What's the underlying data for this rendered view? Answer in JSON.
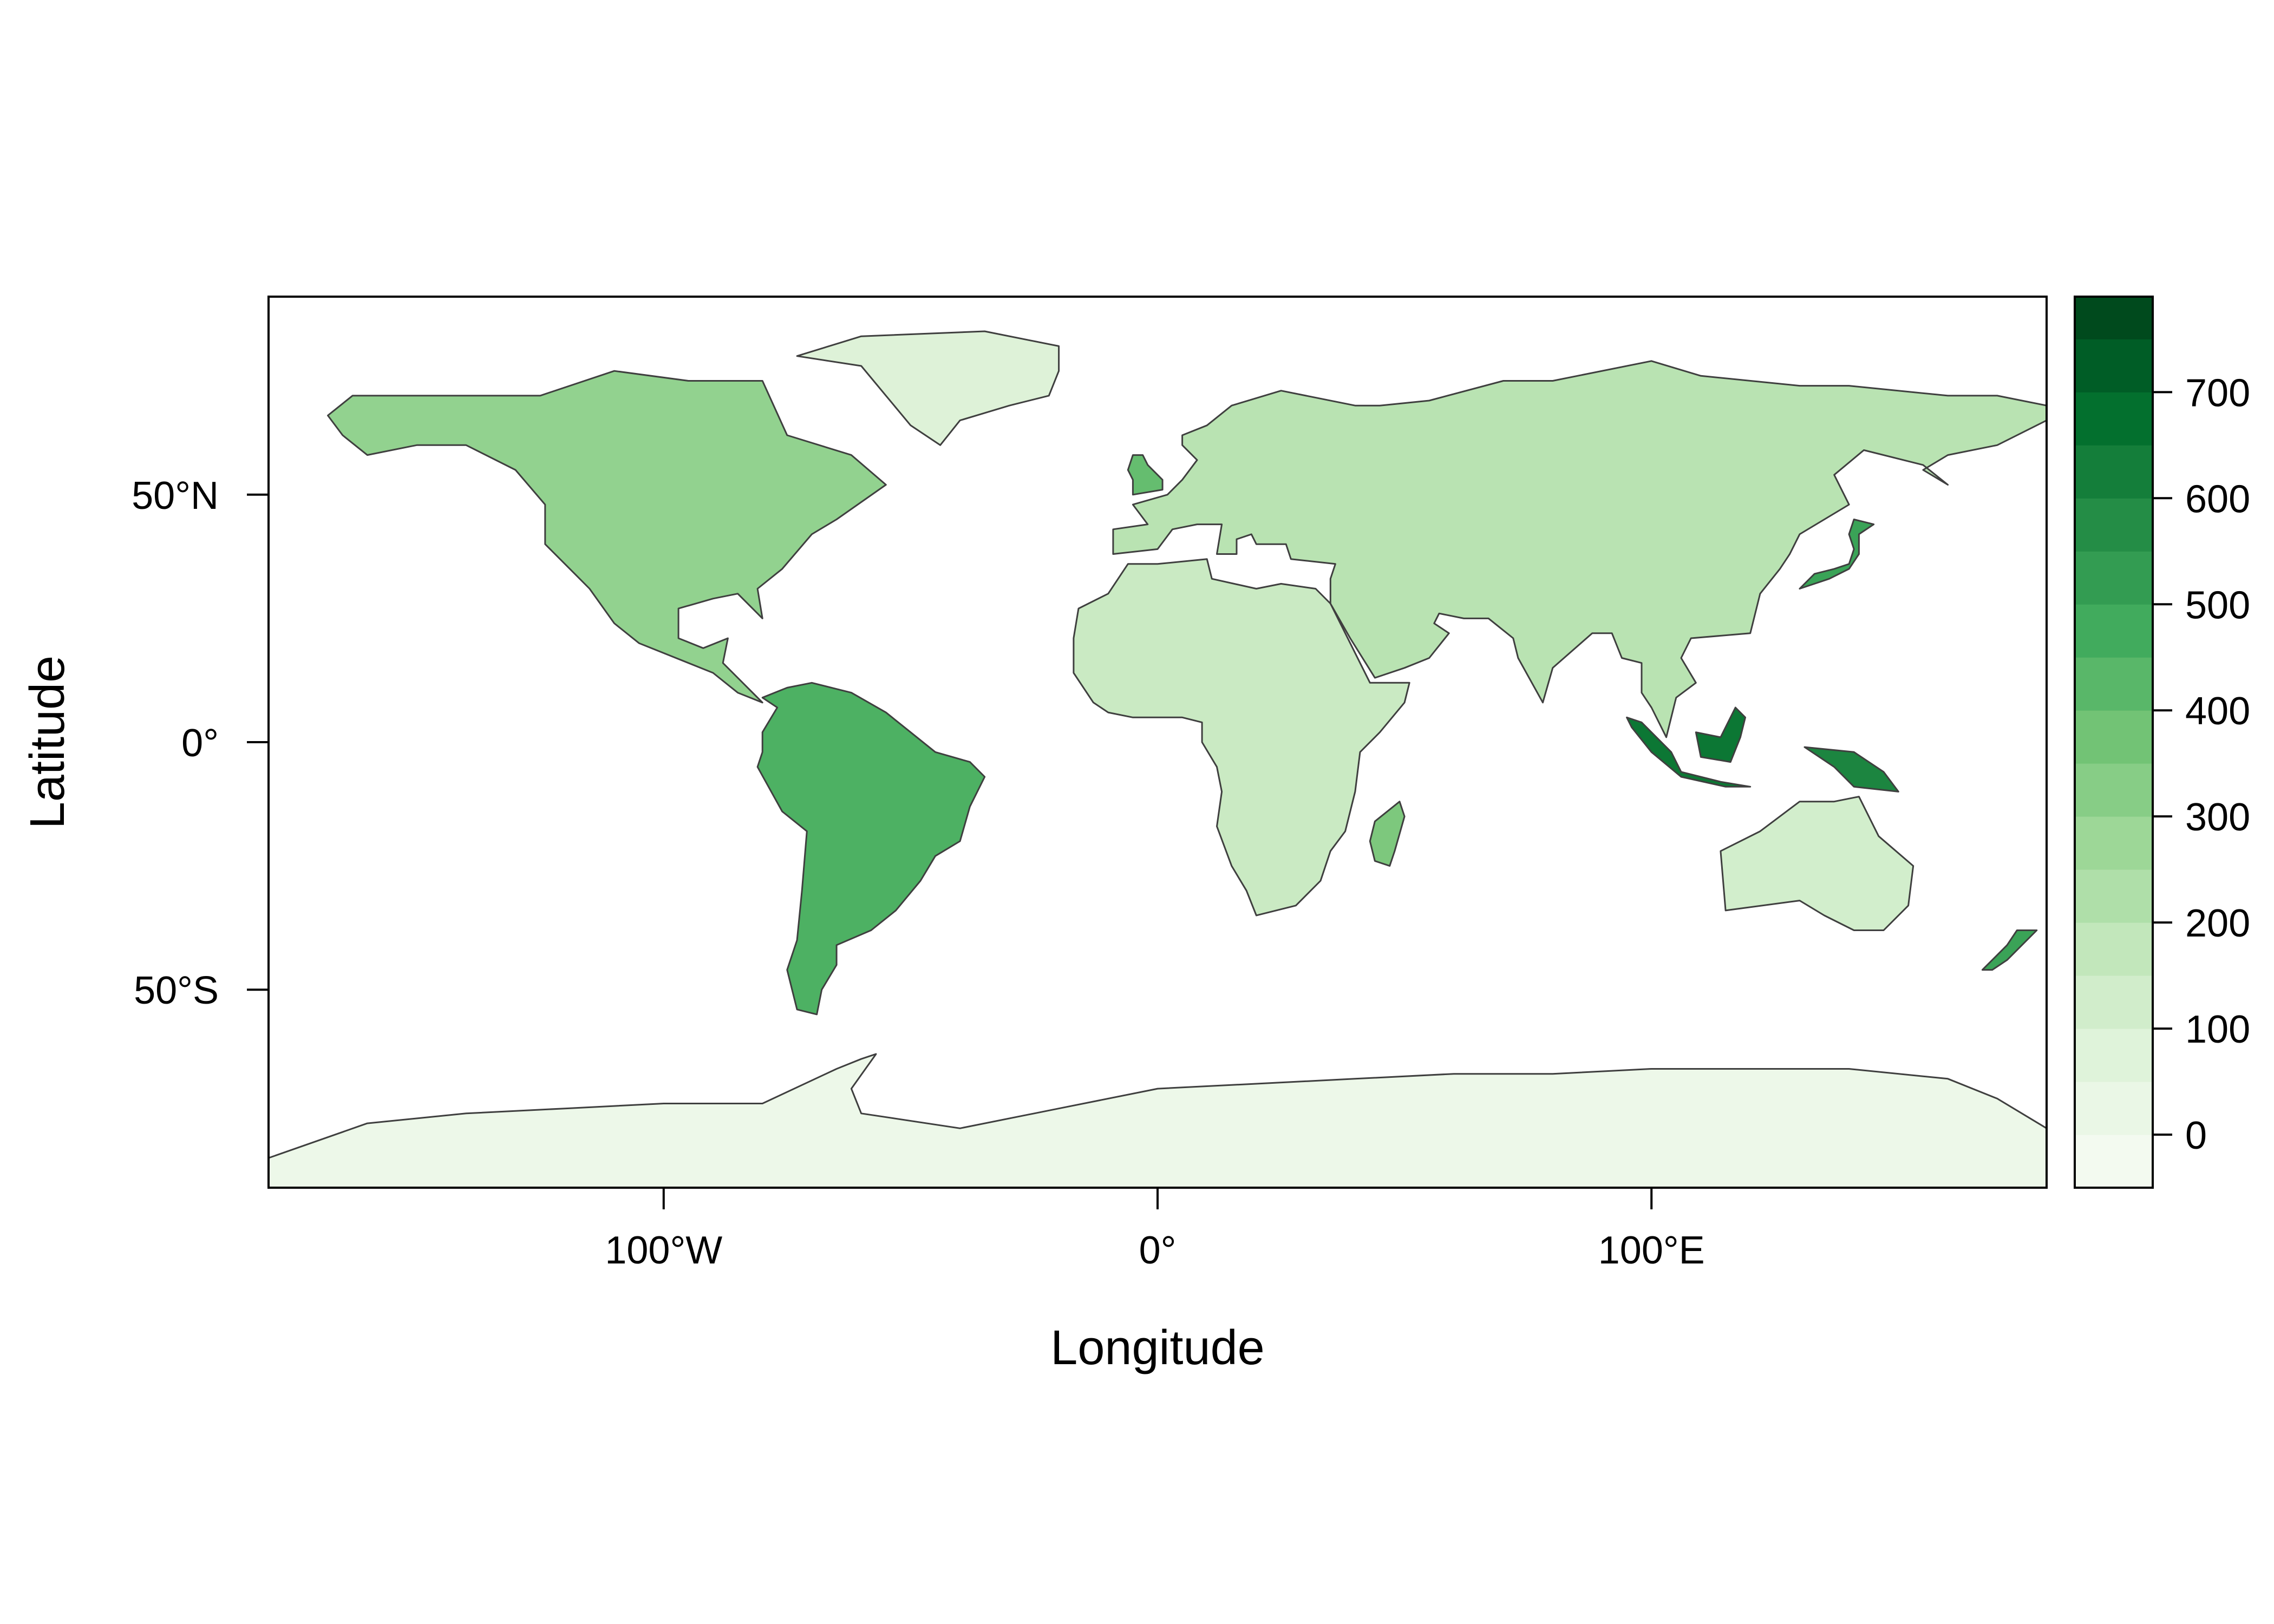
{
  "map": {
    "xlabel": "Longitude",
    "ylabel": "Latitude",
    "xlim": [
      -180,
      180
    ],
    "ylim": [
      -90,
      90
    ],
    "x_ticks": [
      {
        "value": -100,
        "label": "100°W"
      },
      {
        "value": 0,
        "label": "0°"
      },
      {
        "value": 100,
        "label": "100°E"
      }
    ],
    "y_ticks": [
      {
        "value": 50,
        "label": "50°N"
      },
      {
        "value": 0,
        "label": "0°"
      },
      {
        "value": -50,
        "label": "50°S"
      }
    ],
    "palette": [
      "#f7fcf5",
      "#e5f5e0",
      "#c7e9c0",
      "#a1d99b",
      "#74c476",
      "#41ab5d",
      "#238b45",
      "#006d2c",
      "#00441b"
    ],
    "border_color": "#3f3f3f"
  },
  "colorbar": {
    "min": -50,
    "max": 790,
    "step": 50,
    "ticks": [
      0,
      100,
      200,
      300,
      400,
      500,
      600,
      700
    ],
    "tick_labels": [
      "0",
      "100",
      "200",
      "300",
      "400",
      "500",
      "600",
      "700"
    ]
  },
  "chart_data": {
    "type": "heatmap",
    "title": "",
    "xlabel": "Longitude",
    "ylabel": "Latitude",
    "xlim": [
      -180,
      180
    ],
    "ylim": [
      -90,
      90
    ],
    "value_range": [
      -50,
      790
    ],
    "legend_position": "right",
    "grid": false,
    "regions": [
      {
        "name": "North America",
        "value": 300,
        "outline": [
          [
            -168,
            66
          ],
          [
            -163,
            70
          ],
          [
            -140,
            70
          ],
          [
            -125,
            70
          ],
          [
            -110,
            75
          ],
          [
            -95,
            73
          ],
          [
            -80,
            73
          ],
          [
            -75,
            62
          ],
          [
            -62,
            58
          ],
          [
            -55,
            52
          ],
          [
            -65,
            45
          ],
          [
            -70,
            42
          ],
          [
            -76,
            35
          ],
          [
            -81,
            31
          ],
          [
            -80,
            25
          ],
          [
            -85,
            30
          ],
          [
            -90,
            29
          ],
          [
            -97,
            27
          ],
          [
            -97,
            21
          ],
          [
            -92,
            19
          ],
          [
            -87,
            21
          ],
          [
            -88,
            16
          ],
          [
            -83,
            11
          ],
          [
            -80,
            8
          ],
          [
            -85,
            10
          ],
          [
            -90,
            14
          ],
          [
            -95,
            16
          ],
          [
            -105,
            20
          ],
          [
            -110,
            24
          ],
          [
            -115,
            31
          ],
          [
            -118,
            34
          ],
          [
            -124,
            40
          ],
          [
            -124,
            48
          ],
          [
            -130,
            55
          ],
          [
            -140,
            60
          ],
          [
            -150,
            60
          ],
          [
            -160,
            58
          ],
          [
            -165,
            62
          ]
        ]
      },
      {
        "name": "Greenland",
        "value": 80,
        "outline": [
          [
            -73,
            78
          ],
          [
            -60,
            82
          ],
          [
            -35,
            83
          ],
          [
            -20,
            80
          ],
          [
            -20,
            75
          ],
          [
            -22,
            70
          ],
          [
            -30,
            68
          ],
          [
            -40,
            65
          ],
          [
            -44,
            60
          ],
          [
            -50,
            64
          ],
          [
            -55,
            70
          ],
          [
            -60,
            76
          ]
        ]
      },
      {
        "name": "South America",
        "value": 450,
        "outline": [
          [
            -80,
            9
          ],
          [
            -75,
            11
          ],
          [
            -70,
            12
          ],
          [
            -62,
            10
          ],
          [
            -55,
            6
          ],
          [
            -50,
            2
          ],
          [
            -45,
            -2
          ],
          [
            -38,
            -4
          ],
          [
            -35,
            -7
          ],
          [
            -38,
            -13
          ],
          [
            -40,
            -20
          ],
          [
            -45,
            -23
          ],
          [
            -48,
            -28
          ],
          [
            -53,
            -34
          ],
          [
            -58,
            -38
          ],
          [
            -65,
            -41
          ],
          [
            -65,
            -45
          ],
          [
            -68,
            -50
          ],
          [
            -69,
            -55
          ],
          [
            -73,
            -54
          ],
          [
            -75,
            -46
          ],
          [
            -73,
            -40
          ],
          [
            -72,
            -30
          ],
          [
            -71,
            -18
          ],
          [
            -76,
            -14
          ],
          [
            -81,
            -5
          ],
          [
            -80,
            -2
          ],
          [
            -80,
            2
          ],
          [
            -77,
            7
          ]
        ]
      },
      {
        "name": "Africa",
        "value": 150,
        "outline": [
          [
            -17,
            21
          ],
          [
            -16,
            27
          ],
          [
            -10,
            30
          ],
          [
            -6,
            36
          ],
          [
            0,
            36
          ],
          [
            10,
            37
          ],
          [
            11,
            33
          ],
          [
            20,
            31
          ],
          [
            25,
            32
          ],
          [
            32,
            31
          ],
          [
            35,
            28
          ],
          [
            40,
            18
          ],
          [
            43,
            12
          ],
          [
            51,
            12
          ],
          [
            50,
            8
          ],
          [
            45,
            2
          ],
          [
            41,
            -2
          ],
          [
            40,
            -10
          ],
          [
            38,
            -18
          ],
          [
            35,
            -22
          ],
          [
            33,
            -28
          ],
          [
            28,
            -33
          ],
          [
            20,
            -35
          ],
          [
            18,
            -30
          ],
          [
            15,
            -25
          ],
          [
            12,
            -17
          ],
          [
            13,
            -10
          ],
          [
            12,
            -5
          ],
          [
            9,
            0
          ],
          [
            9,
            4
          ],
          [
            5,
            5
          ],
          [
            0,
            5
          ],
          [
            -5,
            5
          ],
          [
            -10,
            6
          ],
          [
            -13,
            8
          ],
          [
            -17,
            14
          ]
        ]
      },
      {
        "name": "Madagascar",
        "value": 350,
        "outline": [
          [
            44,
            -16
          ],
          [
            49,
            -12
          ],
          [
            50,
            -15
          ],
          [
            48,
            -22
          ],
          [
            47,
            -25
          ],
          [
            44,
            -24
          ],
          [
            43,
            -20
          ]
        ]
      },
      {
        "name": "Eurasia",
        "value": 200,
        "outline": [
          [
            -9,
            38
          ],
          [
            -9,
            43
          ],
          [
            -2,
            44
          ],
          [
            -5,
            48
          ],
          [
            2,
            50
          ],
          [
            5,
            53
          ],
          [
            8,
            57
          ],
          [
            5,
            60
          ],
          [
            5,
            62
          ],
          [
            10,
            64
          ],
          [
            15,
            68
          ],
          [
            25,
            71
          ],
          [
            40,
            68
          ],
          [
            45,
            68
          ],
          [
            55,
            69
          ],
          [
            70,
            73
          ],
          [
            80,
            73
          ],
          [
            100,
            77
          ],
          [
            110,
            74
          ],
          [
            130,
            72
          ],
          [
            140,
            72
          ],
          [
            160,
            70
          ],
          [
            170,
            70
          ],
          [
            180,
            68
          ],
          [
            180,
            65
          ],
          [
            170,
            60
          ],
          [
            160,
            58
          ],
          [
            155,
            55
          ],
          [
            160,
            52
          ],
          [
            155,
            56
          ],
          [
            143,
            59
          ],
          [
            137,
            54
          ],
          [
            140,
            48
          ],
          [
            130,
            42
          ],
          [
            128,
            38
          ],
          [
            126,
            35
          ],
          [
            122,
            30
          ],
          [
            120,
            22
          ],
          [
            108,
            21
          ],
          [
            106,
            17
          ],
          [
            109,
            12
          ],
          [
            105,
            9
          ],
          [
            103,
            1
          ],
          [
            100,
            7
          ],
          [
            98,
            10
          ],
          [
            98,
            16
          ],
          [
            94,
            17
          ],
          [
            92,
            22
          ],
          [
            88,
            22
          ],
          [
            80,
            15
          ],
          [
            78,
            8
          ],
          [
            73,
            17
          ],
          [
            72,
            21
          ],
          [
            67,
            25
          ],
          [
            62,
            25
          ],
          [
            57,
            26
          ],
          [
            56,
            24
          ],
          [
            59,
            22
          ],
          [
            55,
            17
          ],
          [
            50,
            15
          ],
          [
            44,
            13
          ],
          [
            39,
            21
          ],
          [
            35,
            28
          ],
          [
            35,
            33
          ],
          [
            36,
            36
          ],
          [
            27,
            37
          ],
          [
            26,
            40
          ],
          [
            23,
            40
          ],
          [
            20,
            40
          ],
          [
            19,
            42
          ],
          [
            16,
            41
          ],
          [
            16,
            38
          ],
          [
            12,
            38
          ],
          [
            13,
            44
          ],
          [
            8,
            44
          ],
          [
            3,
            43
          ],
          [
            0,
            39
          ]
        ]
      },
      {
        "name": "Great Britain",
        "value": 400,
        "outline": [
          [
            -5,
            50
          ],
          [
            1,
            51
          ],
          [
            1,
            53
          ],
          [
            -2,
            56
          ],
          [
            -3,
            58
          ],
          [
            -5,
            58
          ],
          [
            -6,
            55
          ],
          [
            -5,
            53
          ]
        ]
      },
      {
        "name": "Japan",
        "value": 500,
        "outline": [
          [
            130,
            31
          ],
          [
            133,
            34
          ],
          [
            137,
            35
          ],
          [
            140,
            36
          ],
          [
            141,
            39
          ],
          [
            140,
            42
          ],
          [
            141,
            45
          ],
          [
            145,
            44
          ],
          [
            142,
            42
          ],
          [
            142,
            38
          ],
          [
            140,
            35
          ],
          [
            136,
            33
          ]
        ]
      },
      {
        "name": "Indonesia",
        "value": 650,
        "outline": [
          [
            95,
            5
          ],
          [
            98,
            4
          ],
          [
            104,
            -2
          ],
          [
            106,
            -6
          ],
          [
            114,
            -8
          ],
          [
            120,
            -9
          ],
          [
            115,
            -9
          ],
          [
            106,
            -7
          ],
          [
            100,
            -2
          ],
          [
            96,
            3
          ]
        ]
      },
      {
        "name": "Borneo",
        "value": 650,
        "outline": [
          [
            109,
            2
          ],
          [
            114,
            1
          ],
          [
            117,
            7
          ],
          [
            119,
            5
          ],
          [
            118,
            1
          ],
          [
            116,
            -4
          ],
          [
            110,
            -3
          ]
        ]
      },
      {
        "name": "New Guinea",
        "value": 600,
        "outline": [
          [
            131,
            -1
          ],
          [
            141,
            -2
          ],
          [
            147,
            -6
          ],
          [
            150,
            -10
          ],
          [
            141,
            -9
          ],
          [
            137,
            -5
          ]
        ]
      },
      {
        "name": "Australia",
        "value": 120,
        "outline": [
          [
            114,
            -22
          ],
          [
            122,
            -18
          ],
          [
            130,
            -12
          ],
          [
            137,
            -12
          ],
          [
            142,
            -11
          ],
          [
            146,
            -19
          ],
          [
            153,
            -25
          ],
          [
            152,
            -33
          ],
          [
            147,
            -38
          ],
          [
            141,
            -38
          ],
          [
            135,
            -35
          ],
          [
            130,
            -32
          ],
          [
            115,
            -34
          ]
        ]
      },
      {
        "name": "New Zealand",
        "value": 500,
        "outline": [
          [
            167,
            -46
          ],
          [
            172,
            -41
          ],
          [
            174,
            -38
          ],
          [
            178,
            -38
          ],
          [
            175,
            -41
          ],
          [
            172,
            -44
          ],
          [
            169,
            -46
          ]
        ]
      },
      {
        "name": "Antarctica",
        "value": 10,
        "outline": [
          [
            -180,
            -84
          ],
          [
            -160,
            -77
          ],
          [
            -140,
            -75
          ],
          [
            -120,
            -74
          ],
          [
            -100,
            -73
          ],
          [
            -80,
            -73
          ],
          [
            -65,
            -66
          ],
          [
            -60,
            -64
          ],
          [
            -57,
            -63
          ],
          [
            -62,
            -70
          ],
          [
            -60,
            -75
          ],
          [
            -40,
            -78
          ],
          [
            -20,
            -74
          ],
          [
            0,
            -70
          ],
          [
            20,
            -69
          ],
          [
            40,
            -68
          ],
          [
            60,
            -67
          ],
          [
            80,
            -67
          ],
          [
            100,
            -66
          ],
          [
            120,
            -66
          ],
          [
            140,
            -66
          ],
          [
            160,
            -68
          ],
          [
            170,
            -72
          ],
          [
            180,
            -78
          ],
          [
            180,
            -90
          ],
          [
            -180,
            -90
          ]
        ]
      }
    ]
  }
}
